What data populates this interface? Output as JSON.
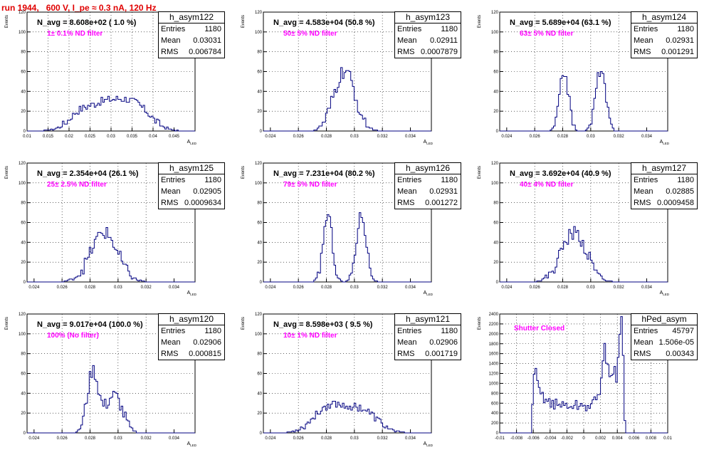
{
  "header": {
    "title": "run 1944,   600 V, I_pe ≈ 0.3 nA, 120 Hz"
  },
  "stats_labels": {
    "entries": "Entries",
    "mean": "Mean",
    "rms": "RMS"
  },
  "chart_data": [
    {
      "type": "histogram",
      "name": "h_asym122",
      "n_avg_label": "N_avg = 8.608e+02 ( 1.0 %)",
      "filter_label": "1± 0.1% ND filter",
      "entries": "1180",
      "mean": "0.03031",
      "rms": "0.006784",
      "ylabel": "Events",
      "xlabel": "A_LED",
      "xlim": [
        0.01,
        0.05
      ],
      "ylim": [
        0,
        120
      ],
      "xticks": [
        0.01,
        0.015,
        0.02,
        0.025,
        0.03,
        0.035,
        0.04,
        0.045
      ],
      "xtick_labels": [
        "0.01",
        "0.015",
        "0.02",
        "0.025",
        "0.03",
        "0.035",
        "0.04",
        "0.045"
      ],
      "yticks": [
        0,
        20,
        40,
        60,
        80,
        100,
        120
      ],
      "ytick_labels": [
        "0",
        "20",
        "40",
        "60",
        "80",
        "100",
        "120"
      ],
      "peaks": [
        [
          0.0255,
          21,
          0.0042
        ],
        [
          0.031,
          16,
          0.0035
        ],
        [
          0.0362,
          22,
          0.0035
        ],
        [
          0.0218,
          5,
          0.002
        ]
      ],
      "noise": 4
    },
    {
      "type": "histogram",
      "name": "h_asym123",
      "n_avg_label": "N_avg = 4.583e+04 (50.8 %)",
      "filter_label": "50± 5% ND filter",
      "entries": "1180",
      "mean": "0.02911",
      "rms": "0.0007879",
      "ylabel": "Events",
      "xlabel": "A_LED",
      "xlim": [
        0.0235,
        0.0355
      ],
      "ylim": [
        0,
        120
      ],
      "xticks": [
        0.024,
        0.026,
        0.028,
        0.03,
        0.032,
        0.034
      ],
      "xtick_labels": [
        "0.024",
        "0.026",
        "0.028",
        "0.03",
        "0.032",
        "0.034"
      ],
      "yticks": [
        0,
        20,
        40,
        60,
        80,
        100,
        120
      ],
      "ytick_labels": [
        "0",
        "20",
        "40",
        "60",
        "80",
        "100",
        "120"
      ],
      "peaks": [
        [
          0.0293,
          60,
          0.00075
        ]
      ],
      "noise": 8
    },
    {
      "type": "histogram",
      "name": "h_asym124",
      "n_avg_label": "N_avg = 5.689e+04 (63.1 %)",
      "filter_label": "63± 5% ND filter",
      "entries": "1180",
      "mean": "0.02931",
      "rms": "0.001291",
      "ylabel": "Events",
      "xlabel": "A_LED",
      "xlim": [
        0.0235,
        0.0355
      ],
      "ylim": [
        0,
        120
      ],
      "xticks": [
        0.024,
        0.026,
        0.028,
        0.03,
        0.032,
        0.034
      ],
      "xtick_labels": [
        "0.024",
        "0.026",
        "0.028",
        "0.03",
        "0.032",
        "0.034"
      ],
      "yticks": [
        0,
        20,
        40,
        60,
        80,
        100,
        120
      ],
      "ytick_labels": [
        "0",
        "20",
        "40",
        "60",
        "80",
        "100",
        "120"
      ],
      "peaks": [
        [
          0.0281,
          60,
          0.00032
        ],
        [
          0.0307,
          62,
          0.00035
        ]
      ],
      "noise": 6
    },
    {
      "type": "histogram",
      "name": "h_asym125",
      "n_avg_label": "N_avg = 2.354e+04 (26.1 %)",
      "filter_label": "25± 2.5% ND filter",
      "entries": "1180",
      "mean": "0.02905",
      "rms": "0.0009634",
      "ylabel": "Events",
      "xlabel": "A_LED",
      "xlim": [
        0.0235,
        0.0355
      ],
      "ylim": [
        0,
        120
      ],
      "xticks": [
        0.024,
        0.026,
        0.028,
        0.03,
        0.032,
        0.034
      ],
      "xtick_labels": [
        "0.024",
        "0.026",
        "0.028",
        "0.03",
        "0.032",
        "0.034"
      ],
      "yticks": [
        0,
        20,
        40,
        60,
        80,
        100,
        120
      ],
      "ytick_labels": [
        "0",
        "20",
        "40",
        "60",
        "80",
        "100",
        "120"
      ],
      "peaks": [
        [
          0.029,
          50,
          0.00095
        ]
      ],
      "noise": 7
    },
    {
      "type": "histogram",
      "name": "h_asym126",
      "n_avg_label": "N_avg = 7.231e+04 (80.2 %)",
      "filter_label": "79± 5% ND filter",
      "entries": "1180",
      "mean": "0.02931",
      "rms": "0.001272",
      "ylabel": "Events",
      "xlabel": "A_LED",
      "xlim": [
        0.0235,
        0.0355
      ],
      "ylim": [
        0,
        120
      ],
      "xticks": [
        0.024,
        0.026,
        0.028,
        0.03,
        0.032,
        0.034
      ],
      "xtick_labels": [
        "0.024",
        "0.026",
        "0.028",
        "0.03",
        "0.032",
        "0.034"
      ],
      "yticks": [
        0,
        20,
        40,
        60,
        80,
        100,
        120
      ],
      "ytick_labels": [
        "0",
        "20",
        "40",
        "60",
        "80",
        "100",
        "120"
      ],
      "peaks": [
        [
          0.0281,
          68,
          0.00033
        ],
        [
          0.0305,
          68,
          0.00036
        ]
      ],
      "noise": 6
    },
    {
      "type": "histogram",
      "name": "h_asym127",
      "n_avg_label": "N_avg = 3.692e+04 (40.9 %)",
      "filter_label": "40± 4% ND filter",
      "entries": "1180",
      "mean": "0.02885",
      "rms": "0.0009458",
      "ylabel": "Events",
      "xlabel": "A_LED",
      "xlim": [
        0.0235,
        0.0355
      ],
      "ylim": [
        0,
        120
      ],
      "xticks": [
        0.024,
        0.026,
        0.028,
        0.03,
        0.032,
        0.034
      ],
      "xtick_labels": [
        "0.024",
        "0.026",
        "0.028",
        "0.03",
        "0.032",
        "0.034"
      ],
      "yticks": [
        0,
        20,
        40,
        60,
        80,
        100,
        120
      ],
      "ytick_labels": [
        "0",
        "20",
        "40",
        "60",
        "80",
        "100",
        "120"
      ],
      "peaks": [
        [
          0.0288,
          50,
          0.00092
        ]
      ],
      "noise": 7
    },
    {
      "type": "histogram",
      "name": "h_asym120",
      "n_avg_label": "N_avg = 9.017e+04 (100.0 %)",
      "filter_label": "100% (No filter)",
      "entries": "1180",
      "mean": "0.02906",
      "rms": "0.000815",
      "ylabel": "Events",
      "xlabel": "A_LED",
      "xlim": [
        0.0235,
        0.0355
      ],
      "ylim": [
        0,
        120
      ],
      "xticks": [
        0.024,
        0.026,
        0.028,
        0.03,
        0.032,
        0.034
      ],
      "xtick_labels": [
        "0.024",
        "0.026",
        "0.028",
        "0.03",
        "0.032",
        "0.034"
      ],
      "yticks": [
        0,
        20,
        40,
        60,
        80,
        100,
        120
      ],
      "ytick_labels": [
        "0",
        "20",
        "40",
        "60",
        "80",
        "100",
        "120"
      ],
      "peaks": [
        [
          0.0282,
          62,
          0.0004
        ],
        [
          0.0297,
          38,
          0.0006
        ]
      ],
      "noise": 7
    },
    {
      "type": "histogram",
      "name": "h_asym121",
      "n_avg_label": "N_avg = 8.598e+03 ( 9.5 %)",
      "filter_label": "10± 1% ND filter",
      "entries": "1180",
      "mean": "0.02906",
      "rms": "0.001719",
      "ylabel": "Events",
      "xlabel": "A_LED",
      "xlim": [
        0.0235,
        0.0355
      ],
      "ylim": [
        0,
        120
      ],
      "xticks": [
        0.024,
        0.026,
        0.028,
        0.03,
        0.032,
        0.034
      ],
      "xtick_labels": [
        "0.024",
        "0.026",
        "0.028",
        "0.03",
        "0.032",
        "0.034"
      ],
      "yticks": [
        0,
        20,
        40,
        60,
        80,
        100,
        120
      ],
      "ytick_labels": [
        "0",
        "20",
        "40",
        "60",
        "80",
        "100",
        "120"
      ],
      "peaks": [
        [
          0.0282,
          26,
          0.0011
        ],
        [
          0.0305,
          22,
          0.0011
        ]
      ],
      "noise": 4
    },
    {
      "type": "histogram",
      "name": "hPed_asym",
      "n_avg_label": "",
      "filter_label": "Shutter Closed",
      "entries": "45797",
      "mean": "1.506e-05",
      "rms": "0.00343",
      "ylabel": "Events",
      "xlabel": "",
      "xlim": [
        -0.01,
        0.01
      ],
      "ylim": [
        0,
        2400
      ],
      "xticks": [
        -0.01,
        -0.008,
        -0.006,
        -0.004,
        -0.002,
        0,
        0.002,
        0.004,
        0.006,
        0.008,
        0.01
      ],
      "xtick_labels": [
        "-0.01",
        "-0.008",
        "-0.006",
        "-0.004",
        "-0.002",
        "0",
        "0.002",
        "0.004",
        "0.006",
        "0.008",
        "0.01"
      ],
      "yticks": [
        0,
        200,
        400,
        600,
        800,
        1000,
        1200,
        1400,
        1600,
        1800,
        2000,
        2200,
        2400
      ],
      "ytick_labels": [
        "0",
        "200",
        "400",
        "600",
        "800",
        "1000",
        "1200",
        "1400",
        "1600",
        "1800",
        "2000",
        "2200",
        "2400"
      ],
      "profile": [
        [
          -0.0063,
          0
        ],
        [
          -0.006,
          800
        ],
        [
          -0.0058,
          1350
        ],
        [
          -0.0055,
          1000
        ],
        [
          -0.005,
          750
        ],
        [
          -0.0045,
          700
        ],
        [
          -0.004,
          620
        ],
        [
          -0.0035,
          580
        ],
        [
          -0.0025,
          560
        ],
        [
          -0.001,
          550
        ],
        [
          0.0005,
          540
        ],
        [
          0.0012,
          600
        ],
        [
          0.0018,
          750
        ],
        [
          0.0022,
          1300
        ],
        [
          0.0025,
          1700
        ],
        [
          0.0028,
          1300
        ],
        [
          0.0032,
          1200
        ],
        [
          0.0036,
          1300
        ],
        [
          0.0039,
          1100
        ],
        [
          0.0042,
          1700
        ],
        [
          0.0045,
          2300
        ],
        [
          0.0047,
          1500
        ],
        [
          0.0049,
          300
        ],
        [
          0.005,
          0
        ]
      ],
      "noise": 120
    }
  ]
}
